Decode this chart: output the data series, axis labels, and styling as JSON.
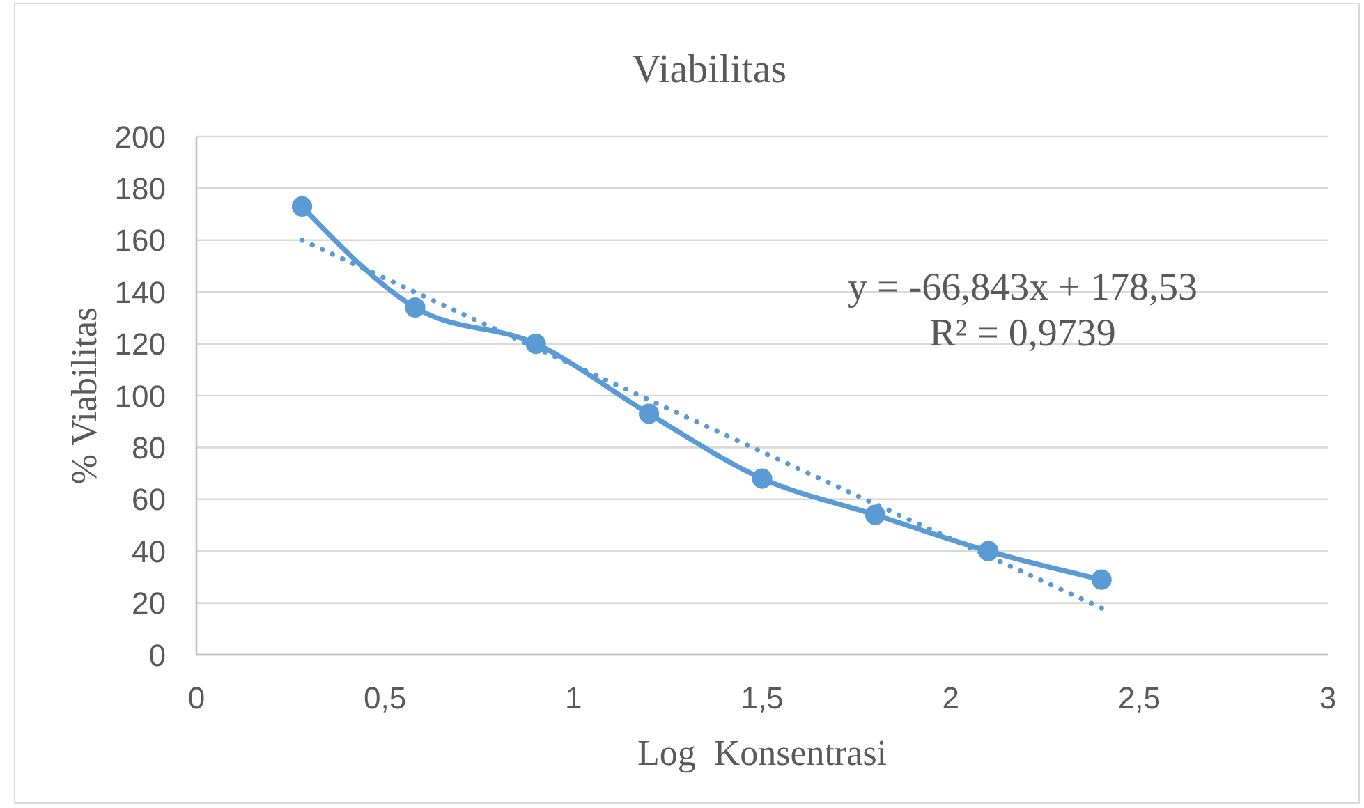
{
  "chart_data": {
    "type": "line",
    "title": "Viabilitas",
    "xlabel": "Log  Konsentrasi",
    "ylabel": "% Viabilitas",
    "annotations": [
      "y = -66,843x + 178,53",
      "R² = 0,9739"
    ],
    "xlim": [
      0,
      3
    ],
    "xticks": [
      0,
      {
        "value": 0.5,
        "label": "0,5"
      },
      1,
      {
        "value": 1.5,
        "label": "1,5"
      },
      2,
      {
        "value": 2.5,
        "label": "2,5"
      },
      3
    ],
    "ylim": [
      0,
      200
    ],
    "yticks": [
      0,
      20,
      40,
      60,
      80,
      100,
      120,
      140,
      160,
      180,
      200
    ],
    "grid": "y",
    "marker": "circle",
    "line_style": "solid",
    "series": [
      {
        "x": [
          0.28,
          0.58,
          0.9,
          1.2,
          1.5,
          1.8,
          2.1,
          2.4
        ],
        "values": [
          173,
          134,
          120,
          93,
          68,
          54,
          40,
          29
        ],
        "color": "#5b9bd5"
      },
      {
        "type": "line",
        "x": [
          0.28,
          2.4
        ],
        "values": [
          160,
          18
        ],
        "color": "#5b9bd5",
        "line_style": "dotted",
        "marker": "none"
      }
    ]
  }
}
